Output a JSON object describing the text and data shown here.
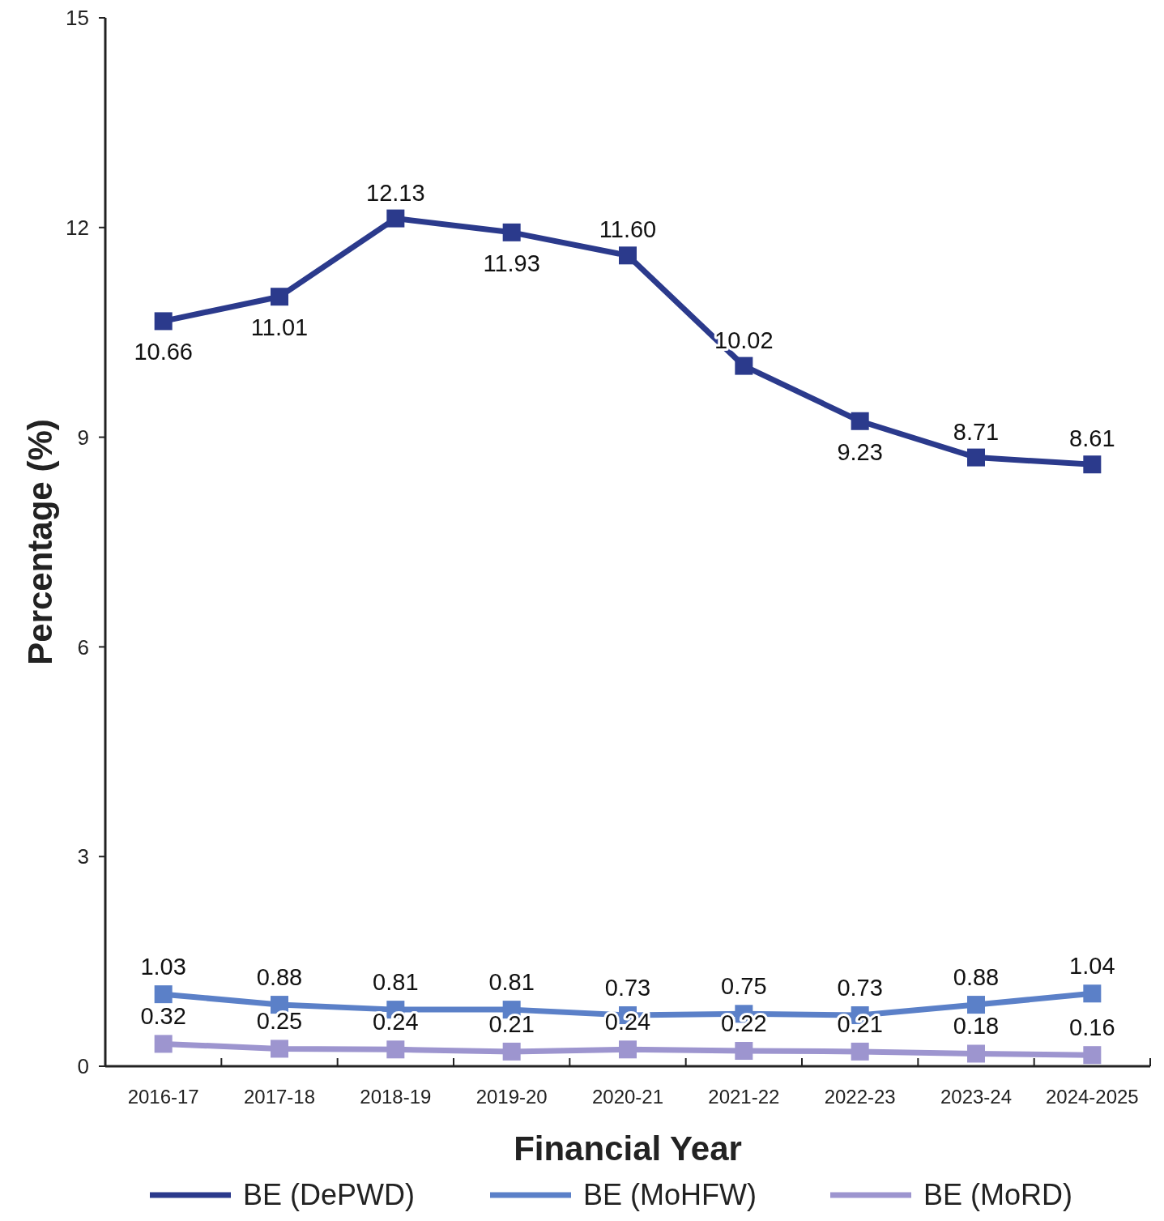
{
  "chart_data": {
    "type": "line",
    "xlabel": "Financial Year",
    "ylabel": "Percentage (%)",
    "categories": [
      "2016-17",
      "2017-18",
      "2018-19",
      "2019-20",
      "2020-21",
      "2021-22",
      "2022-23",
      "2023-24",
      "2024-2025"
    ],
    "series": [
      {
        "name": "BE (DePWD)",
        "color": "#2b3a8c",
        "values": [
          10.66,
          11.01,
          12.13,
          11.93,
          11.6,
          10.02,
          9.23,
          8.71,
          8.61
        ],
        "value_labels": [
          "10.66",
          "11.01",
          "12.13",
          "11.93",
          "11.60",
          "10.02",
          "9.23",
          "8.71",
          "8.61"
        ]
      },
      {
        "name": "BE (MoHFW)",
        "color": "#5b80c8",
        "values": [
          1.03,
          0.88,
          0.81,
          0.81,
          0.73,
          0.75,
          0.73,
          0.88,
          1.04
        ],
        "value_labels": [
          "1.03",
          "0.88",
          "0.81",
          "0.81",
          "0.73",
          "0.75",
          "0.73",
          "0.88",
          "1.04"
        ]
      },
      {
        "name": "BE (MoRD)",
        "color": "#9d95cf",
        "values": [
          0.32,
          0.25,
          0.24,
          0.21,
          0.24,
          0.22,
          0.21,
          0.18,
          0.16
        ],
        "value_labels": [
          "0.32",
          "0.25",
          "0.24",
          "0.21",
          "0.24",
          "0.22",
          "0.21",
          "0.18",
          "0.16"
        ]
      }
    ],
    "ylim": [
      0,
      15
    ],
    "yticks": [
      0,
      3,
      6,
      9,
      12,
      15
    ],
    "grid": false,
    "legend": "bottom",
    "marker": "square",
    "line_style": "solid",
    "data_labels": true
  }
}
